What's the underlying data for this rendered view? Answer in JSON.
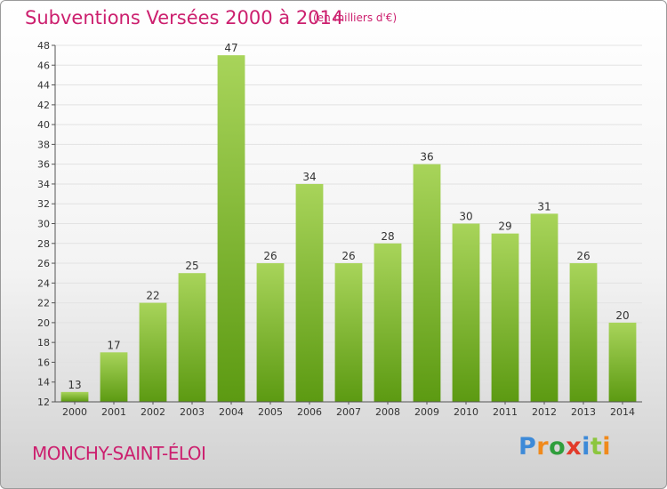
{
  "title": "Subventions Versées 2000 à 2014",
  "subtitle": "(en milliers d'€)",
  "town": "MONCHY-SAINT-ÉLOI",
  "brand": "Proxiti",
  "colors": {
    "title": "#cc1f6e",
    "bar_top": "#a8d45a",
    "bar_bottom": "#5c9a12",
    "brand_letters": [
      "#3d8ad8",
      "#f08a1c",
      "#2f9e3c",
      "#e23a2a",
      "#3d8ad8",
      "#8cc63f",
      "#f08a1c"
    ]
  },
  "chart_data": {
    "type": "bar",
    "title": "Subventions Versées 2000 à 2014",
    "subtitle": "(en milliers d'€)",
    "xlabel": "",
    "ylabel": "",
    "categories": [
      "2000",
      "2001",
      "2002",
      "2003",
      "2004",
      "2005",
      "2006",
      "2007",
      "2008",
      "2009",
      "2010",
      "2011",
      "2012",
      "2013",
      "2014"
    ],
    "values": [
      13,
      17,
      22,
      25,
      47,
      26,
      34,
      26,
      28,
      36,
      30,
      29,
      31,
      26,
      20
    ],
    "ylim": [
      12,
      48
    ],
    "yticks": [
      12,
      14,
      16,
      18,
      20,
      22,
      24,
      26,
      28,
      30,
      32,
      34,
      36,
      38,
      40,
      42,
      44,
      46,
      48
    ],
    "grid": true,
    "data_labels": true
  }
}
